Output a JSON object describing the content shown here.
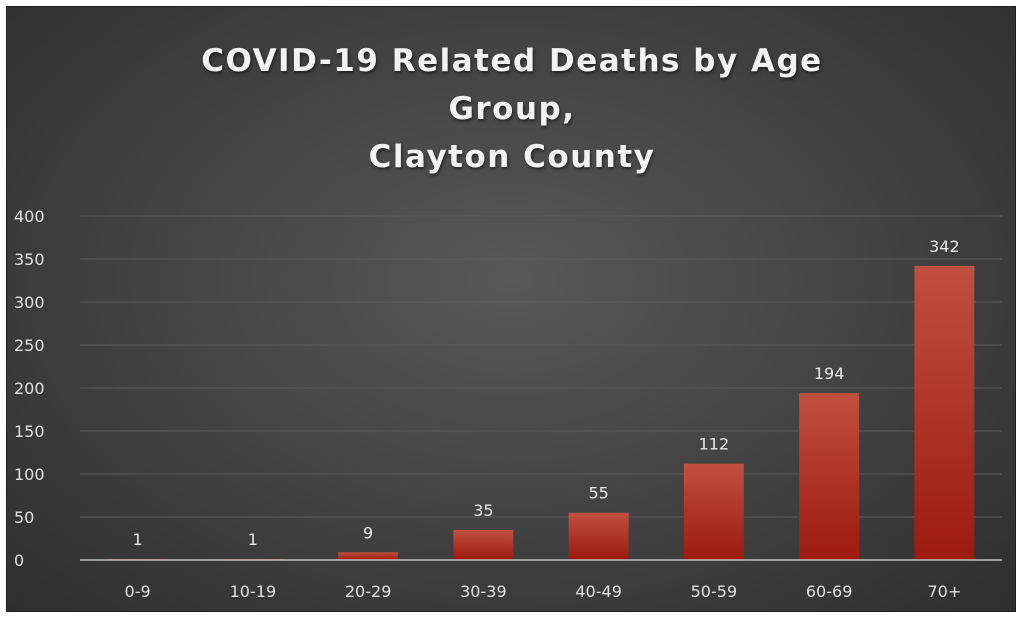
{
  "chart_data": {
    "type": "bar",
    "title_lines": [
      "COVID-19 Related Deaths by Age",
      "Group,",
      "Clayton County"
    ],
    "categories": [
      "0-9",
      "10-19",
      "20-29",
      "30-39",
      "40-49",
      "50-59",
      "60-69",
      "70+"
    ],
    "values": [
      1,
      1,
      9,
      35,
      55,
      112,
      194,
      342
    ],
    "data_labels": [
      "1",
      "1",
      "9",
      "35",
      "55",
      "112",
      "194",
      "342"
    ],
    "ylim": [
      0,
      400
    ],
    "yticks": [
      0,
      50,
      100,
      150,
      200,
      250,
      300,
      350,
      400
    ],
    "grid": true,
    "legend": "none",
    "colors": {
      "bar_top": "#c0503e",
      "bar_bottom": "#9c1a0e",
      "grid": "#5c5c5c",
      "axis": "#bfbfbf",
      "background": "#454545"
    }
  }
}
